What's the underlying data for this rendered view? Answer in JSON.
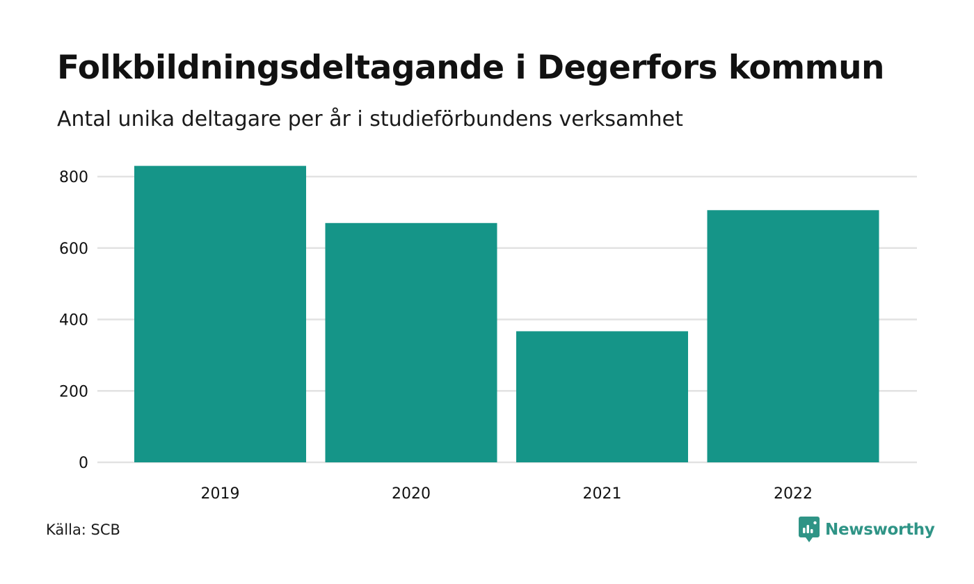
{
  "title": "Folkbildningsdeltagande i Degerfors kommun",
  "subtitle": "Antal unika deltagare per år i studieförbundens verksamhet",
  "source": "Källa: SCB",
  "brand": {
    "name": "Newsworthy",
    "icon": "newsworthy-logo-icon"
  },
  "colors": {
    "bar": "#159588",
    "grid": "#e2e2e2",
    "text": "#111111",
    "brand": "#2f9486"
  },
  "chart_data": {
    "type": "bar",
    "categories": [
      "2019",
      "2020",
      "2021",
      "2022"
    ],
    "values": [
      830,
      670,
      367,
      706
    ],
    "ylim": [
      0,
      800
    ],
    "yticks": [
      0,
      200,
      400,
      600,
      800
    ],
    "xlabel": "",
    "ylabel": "",
    "grid": true,
    "legend": "none"
  }
}
